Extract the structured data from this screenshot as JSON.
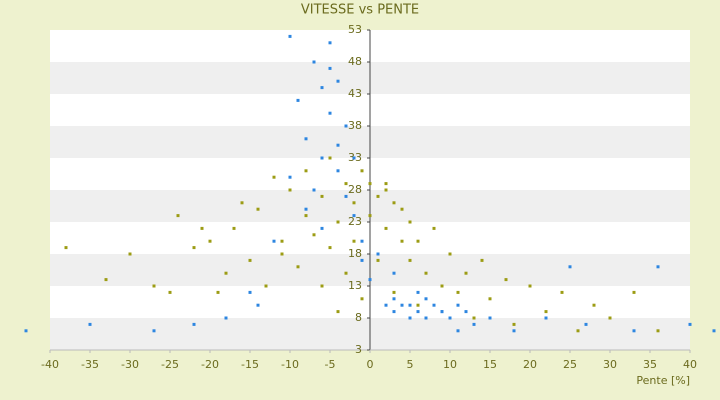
{
  "chart_data": {
    "type": "scatter",
    "title": "VITESSE vs PENTE",
    "x_label": "Pente [%]",
    "xlim": [
      -40,
      40
    ],
    "xticks": [
      -40,
      -35,
      -30,
      -25,
      -20,
      -15,
      -10,
      -5,
      0,
      5,
      10,
      15,
      20,
      25,
      30,
      35,
      40
    ],
    "ylim": [
      3,
      53
    ],
    "yticks": [
      3,
      8,
      13,
      18,
      23,
      28,
      33,
      38,
      43,
      48,
      53
    ],
    "grid": "bands",
    "series": [
      {
        "color": "#9c9c14",
        "x": [
          -38,
          -33,
          -30,
          -27,
          -25,
          -24,
          -22,
          -20,
          -19,
          -18,
          -17,
          -16,
          -15,
          -14,
          -13,
          -12,
          -11,
          -10,
          -9,
          -8,
          -8,
          -7,
          -6,
          -6,
          -5,
          -5,
          -4,
          -4,
          -3,
          -3,
          -2,
          -2,
          -1,
          -1,
          0,
          0,
          1,
          1,
          2,
          2,
          3,
          3,
          4,
          4,
          5,
          5,
          6,
          6,
          7,
          8,
          9,
          10,
          11,
          12,
          13,
          14,
          15,
          17,
          18,
          20,
          22,
          24,
          26,
          28,
          30,
          33,
          36,
          -21,
          -11,
          2
        ],
        "values": [
          19,
          14,
          18,
          13,
          12,
          24,
          19,
          20,
          12,
          15,
          22,
          26,
          17,
          25,
          13,
          30,
          20,
          28,
          16,
          24,
          31,
          21,
          13,
          27,
          19,
          33,
          23,
          9,
          29,
          15,
          26,
          20,
          31,
          11,
          24,
          29,
          27,
          17,
          22,
          29,
          26,
          12,
          20,
          25,
          17,
          23,
          10,
          20,
          15,
          22,
          13,
          18,
          12,
          15,
          8,
          17,
          11,
          14,
          7,
          13,
          9,
          12,
          6,
          10,
          8,
          12,
          6,
          22,
          18,
          28
        ]
      },
      {
        "color": "#2d86e0",
        "x": [
          -43,
          -35,
          -27,
          -22,
          -18,
          -14,
          -10,
          -10,
          -9,
          -8,
          -7,
          -7,
          -6,
          -6,
          -6,
          -5,
          -5,
          -5,
          -4,
          -4,
          -4,
          -3,
          -3,
          -2,
          -2,
          -1,
          -1,
          0,
          1,
          2,
          3,
          3,
          4,
          5,
          5,
          6,
          7,
          7,
          8,
          9,
          10,
          11,
          12,
          13,
          15,
          18,
          22,
          27,
          33,
          36,
          40,
          43,
          -15,
          -12,
          -8,
          3,
          6,
          9,
          11,
          25
        ],
        "values": [
          6,
          7,
          6,
          7,
          8,
          10,
          52,
          30,
          42,
          36,
          48,
          28,
          44,
          33,
          22,
          51,
          40,
          47,
          35,
          45,
          31,
          38,
          27,
          24,
          33,
          20,
          17,
          14,
          18,
          10,
          9,
          11,
          10,
          8,
          10,
          9,
          11,
          8,
          10,
          9,
          8,
          10,
          9,
          7,
          8,
          6,
          8,
          7,
          6,
          16,
          7,
          6,
          12,
          20,
          25,
          15,
          12,
          9,
          6,
          16
        ]
      }
    ]
  }
}
